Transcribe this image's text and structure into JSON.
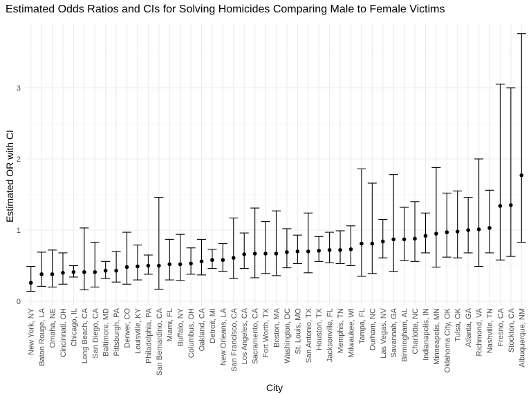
{
  "chart_data": {
    "type": "scatter",
    "title": "Estimated Odds Ratios and CIs for Solving Homicides Comparing Male to Female Victims",
    "xlabel": "City",
    "ylabel": "Estimated OR with CI",
    "ylim": [
      0,
      3.8
    ],
    "yticks": [
      "0",
      "1",
      "2",
      "3"
    ],
    "grid": true,
    "legend": "none",
    "points": [
      {
        "city": "New York, NY",
        "or": 0.26,
        "lo": 0.14,
        "hi": 0.49
      },
      {
        "city": "Baton Rouge, LA",
        "or": 0.38,
        "lo": 0.21,
        "hi": 0.69
      },
      {
        "city": "Omaha, NE",
        "or": 0.38,
        "lo": 0.2,
        "hi": 0.72
      },
      {
        "city": "Cincinnati, OH",
        "or": 0.4,
        "lo": 0.24,
        "hi": 0.68
      },
      {
        "city": "Chicago, IL",
        "or": 0.41,
        "lo": 0.34,
        "hi": 0.5
      },
      {
        "city": "Long Beach, CA",
        "or": 0.41,
        "lo": 0.16,
        "hi": 1.03
      },
      {
        "city": "San Diego, CA",
        "or": 0.41,
        "lo": 0.2,
        "hi": 0.83
      },
      {
        "city": "Baltimore, MD",
        "or": 0.43,
        "lo": 0.32,
        "hi": 0.56
      },
      {
        "city": "Pittsburgh, PA",
        "or": 0.43,
        "lo": 0.27,
        "hi": 0.7
      },
      {
        "city": "Denver, CO",
        "or": 0.48,
        "lo": 0.24,
        "hi": 0.97
      },
      {
        "city": "Louisville, KY",
        "or": 0.49,
        "lo": 0.3,
        "hi": 0.79
      },
      {
        "city": "Philadelphia, PA",
        "or": 0.5,
        "lo": 0.38,
        "hi": 0.65
      },
      {
        "city": "San Bernardino, CA",
        "or": 0.5,
        "lo": 0.17,
        "hi": 1.46
      },
      {
        "city": "Miami, FL",
        "or": 0.52,
        "lo": 0.3,
        "hi": 0.87
      },
      {
        "city": "Buffalo, NY",
        "or": 0.52,
        "lo": 0.29,
        "hi": 0.94
      },
      {
        "city": "Columbus, OH",
        "or": 0.53,
        "lo": 0.38,
        "hi": 0.75
      },
      {
        "city": "Oakland, CA",
        "or": 0.56,
        "lo": 0.37,
        "hi": 0.87
      },
      {
        "city": "Detroit, MI",
        "or": 0.58,
        "lo": 0.46,
        "hi": 0.73
      },
      {
        "city": "New Orleans, LA",
        "or": 0.58,
        "lo": 0.42,
        "hi": 0.81
      },
      {
        "city": "San Francisco, CA",
        "or": 0.61,
        "lo": 0.32,
        "hi": 1.17
      },
      {
        "city": "Los Angeles, CA",
        "or": 0.66,
        "lo": 0.46,
        "hi": 0.96
      },
      {
        "city": "Sacramento, CA",
        "or": 0.67,
        "lo": 0.33,
        "hi": 1.31
      },
      {
        "city": "Fort Worth, TX",
        "or": 0.67,
        "lo": 0.39,
        "hi": 1.12
      },
      {
        "city": "Boston, MA",
        "or": 0.67,
        "lo": 0.36,
        "hi": 1.27
      },
      {
        "city": "Washington, DC",
        "or": 0.69,
        "lo": 0.47,
        "hi": 1.02
      },
      {
        "city": "St. Louis, MO",
        "or": 0.7,
        "lo": 0.53,
        "hi": 0.93
      },
      {
        "city": "San Antonio, TX",
        "or": 0.7,
        "lo": 0.4,
        "hi": 1.24
      },
      {
        "city": "Houston, TX",
        "or": 0.71,
        "lo": 0.56,
        "hi": 0.91
      },
      {
        "city": "Jacksonville, FL",
        "or": 0.72,
        "lo": 0.54,
        "hi": 0.97
      },
      {
        "city": "Memphis, TN",
        "or": 0.72,
        "lo": 0.53,
        "hi": 0.99
      },
      {
        "city": "Milwaukee, WI",
        "or": 0.73,
        "lo": 0.5,
        "hi": 1.06
      },
      {
        "city": "Tampa, FL",
        "or": 0.81,
        "lo": 0.35,
        "hi": 1.86
      },
      {
        "city": "Durham, NC",
        "or": 0.81,
        "lo": 0.39,
        "hi": 1.66
      },
      {
        "city": "Las Vegas, NV",
        "or": 0.84,
        "lo": 0.61,
        "hi": 1.15
      },
      {
        "city": "Savannah, GA",
        "or": 0.87,
        "lo": 0.42,
        "hi": 1.78
      },
      {
        "city": "Birmingham, AL",
        "or": 0.87,
        "lo": 0.57,
        "hi": 1.32
      },
      {
        "city": "Charlotte, NC",
        "or": 0.88,
        "lo": 0.56,
        "hi": 1.4
      },
      {
        "city": "Indianapolis, IN",
        "or": 0.92,
        "lo": 0.68,
        "hi": 1.24
      },
      {
        "city": "Minneapolis, MN",
        "or": 0.95,
        "lo": 0.48,
        "hi": 1.88
      },
      {
        "city": "Oklahoma City, OK",
        "or": 0.97,
        "lo": 0.62,
        "hi": 1.52
      },
      {
        "city": "Tulsa, OK",
        "or": 0.98,
        "lo": 0.61,
        "hi": 1.55
      },
      {
        "city": "Atlanta, GA",
        "or": 1.0,
        "lo": 0.68,
        "hi": 1.46
      },
      {
        "city": "Richmond, VA",
        "or": 1.01,
        "lo": 0.49,
        "hi": 2.0
      },
      {
        "city": "Nashville, TN",
        "or": 1.03,
        "lo": 0.68,
        "hi": 1.56
      },
      {
        "city": "Fresno, CA",
        "or": 1.34,
        "lo": 0.58,
        "hi": 3.05
      },
      {
        "city": "Stockton, CA",
        "or": 1.35,
        "lo": 0.63,
        "hi": 3.0
      },
      {
        "city": "Albuquerque, NM",
        "or": 1.77,
        "lo": 0.83,
        "hi": 3.76
      }
    ]
  }
}
